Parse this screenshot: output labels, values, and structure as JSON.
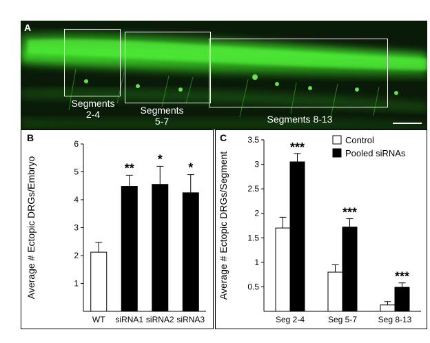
{
  "panel_a": {
    "letter": "A",
    "boxes": [
      {
        "label_line1": "Segments",
        "label_line2": "2-4"
      },
      {
        "label_line1": "Segments",
        "label_line2": "5-7"
      },
      {
        "label_line1": "Segments 8-13",
        "label_line2": ""
      }
    ]
  },
  "chart_data": [
    {
      "type": "bar",
      "panel": "B",
      "categories": [
        "WT",
        "siRNA1",
        "siRNA2",
        "siRNA3"
      ],
      "values": [
        2.12,
        4.48,
        4.55,
        4.25
      ],
      "errors": [
        0.35,
        0.4,
        0.65,
        0.65
      ],
      "fills": [
        "#ffffff",
        "#000000",
        "#000000",
        "#000000"
      ],
      "significance": [
        "",
        "**",
        "*",
        "*"
      ],
      "ylabel": "Average # Ectopic DRGs/Embryo",
      "ylim": [
        0,
        6
      ],
      "yticks": [
        1,
        2,
        3,
        4,
        5,
        6
      ],
      "grid": false
    },
    {
      "type": "bar",
      "panel": "C",
      "categories": [
        "Seg 2-4",
        "Seg 5-7",
        "Seg 8-13"
      ],
      "series": [
        {
          "name": "Control",
          "values": [
            1.7,
            0.8,
            0.13
          ],
          "errors": [
            0.22,
            0.15,
            0.07
          ],
          "fill": "#ffffff"
        },
        {
          "name": "Pooled siRNAs",
          "values": [
            3.05,
            1.72,
            0.49
          ],
          "errors": [
            0.17,
            0.17,
            0.09
          ],
          "fill": "#000000"
        }
      ],
      "significance": [
        "***",
        "***",
        "***"
      ],
      "ylabel": "Average # Ectopic DRGs/Segment",
      "ylim": [
        0,
        3.5
      ],
      "yticks": [
        0.5,
        1,
        1.5,
        2,
        2.5,
        3,
        3.5
      ],
      "legend": "top-right",
      "grid": false
    }
  ]
}
